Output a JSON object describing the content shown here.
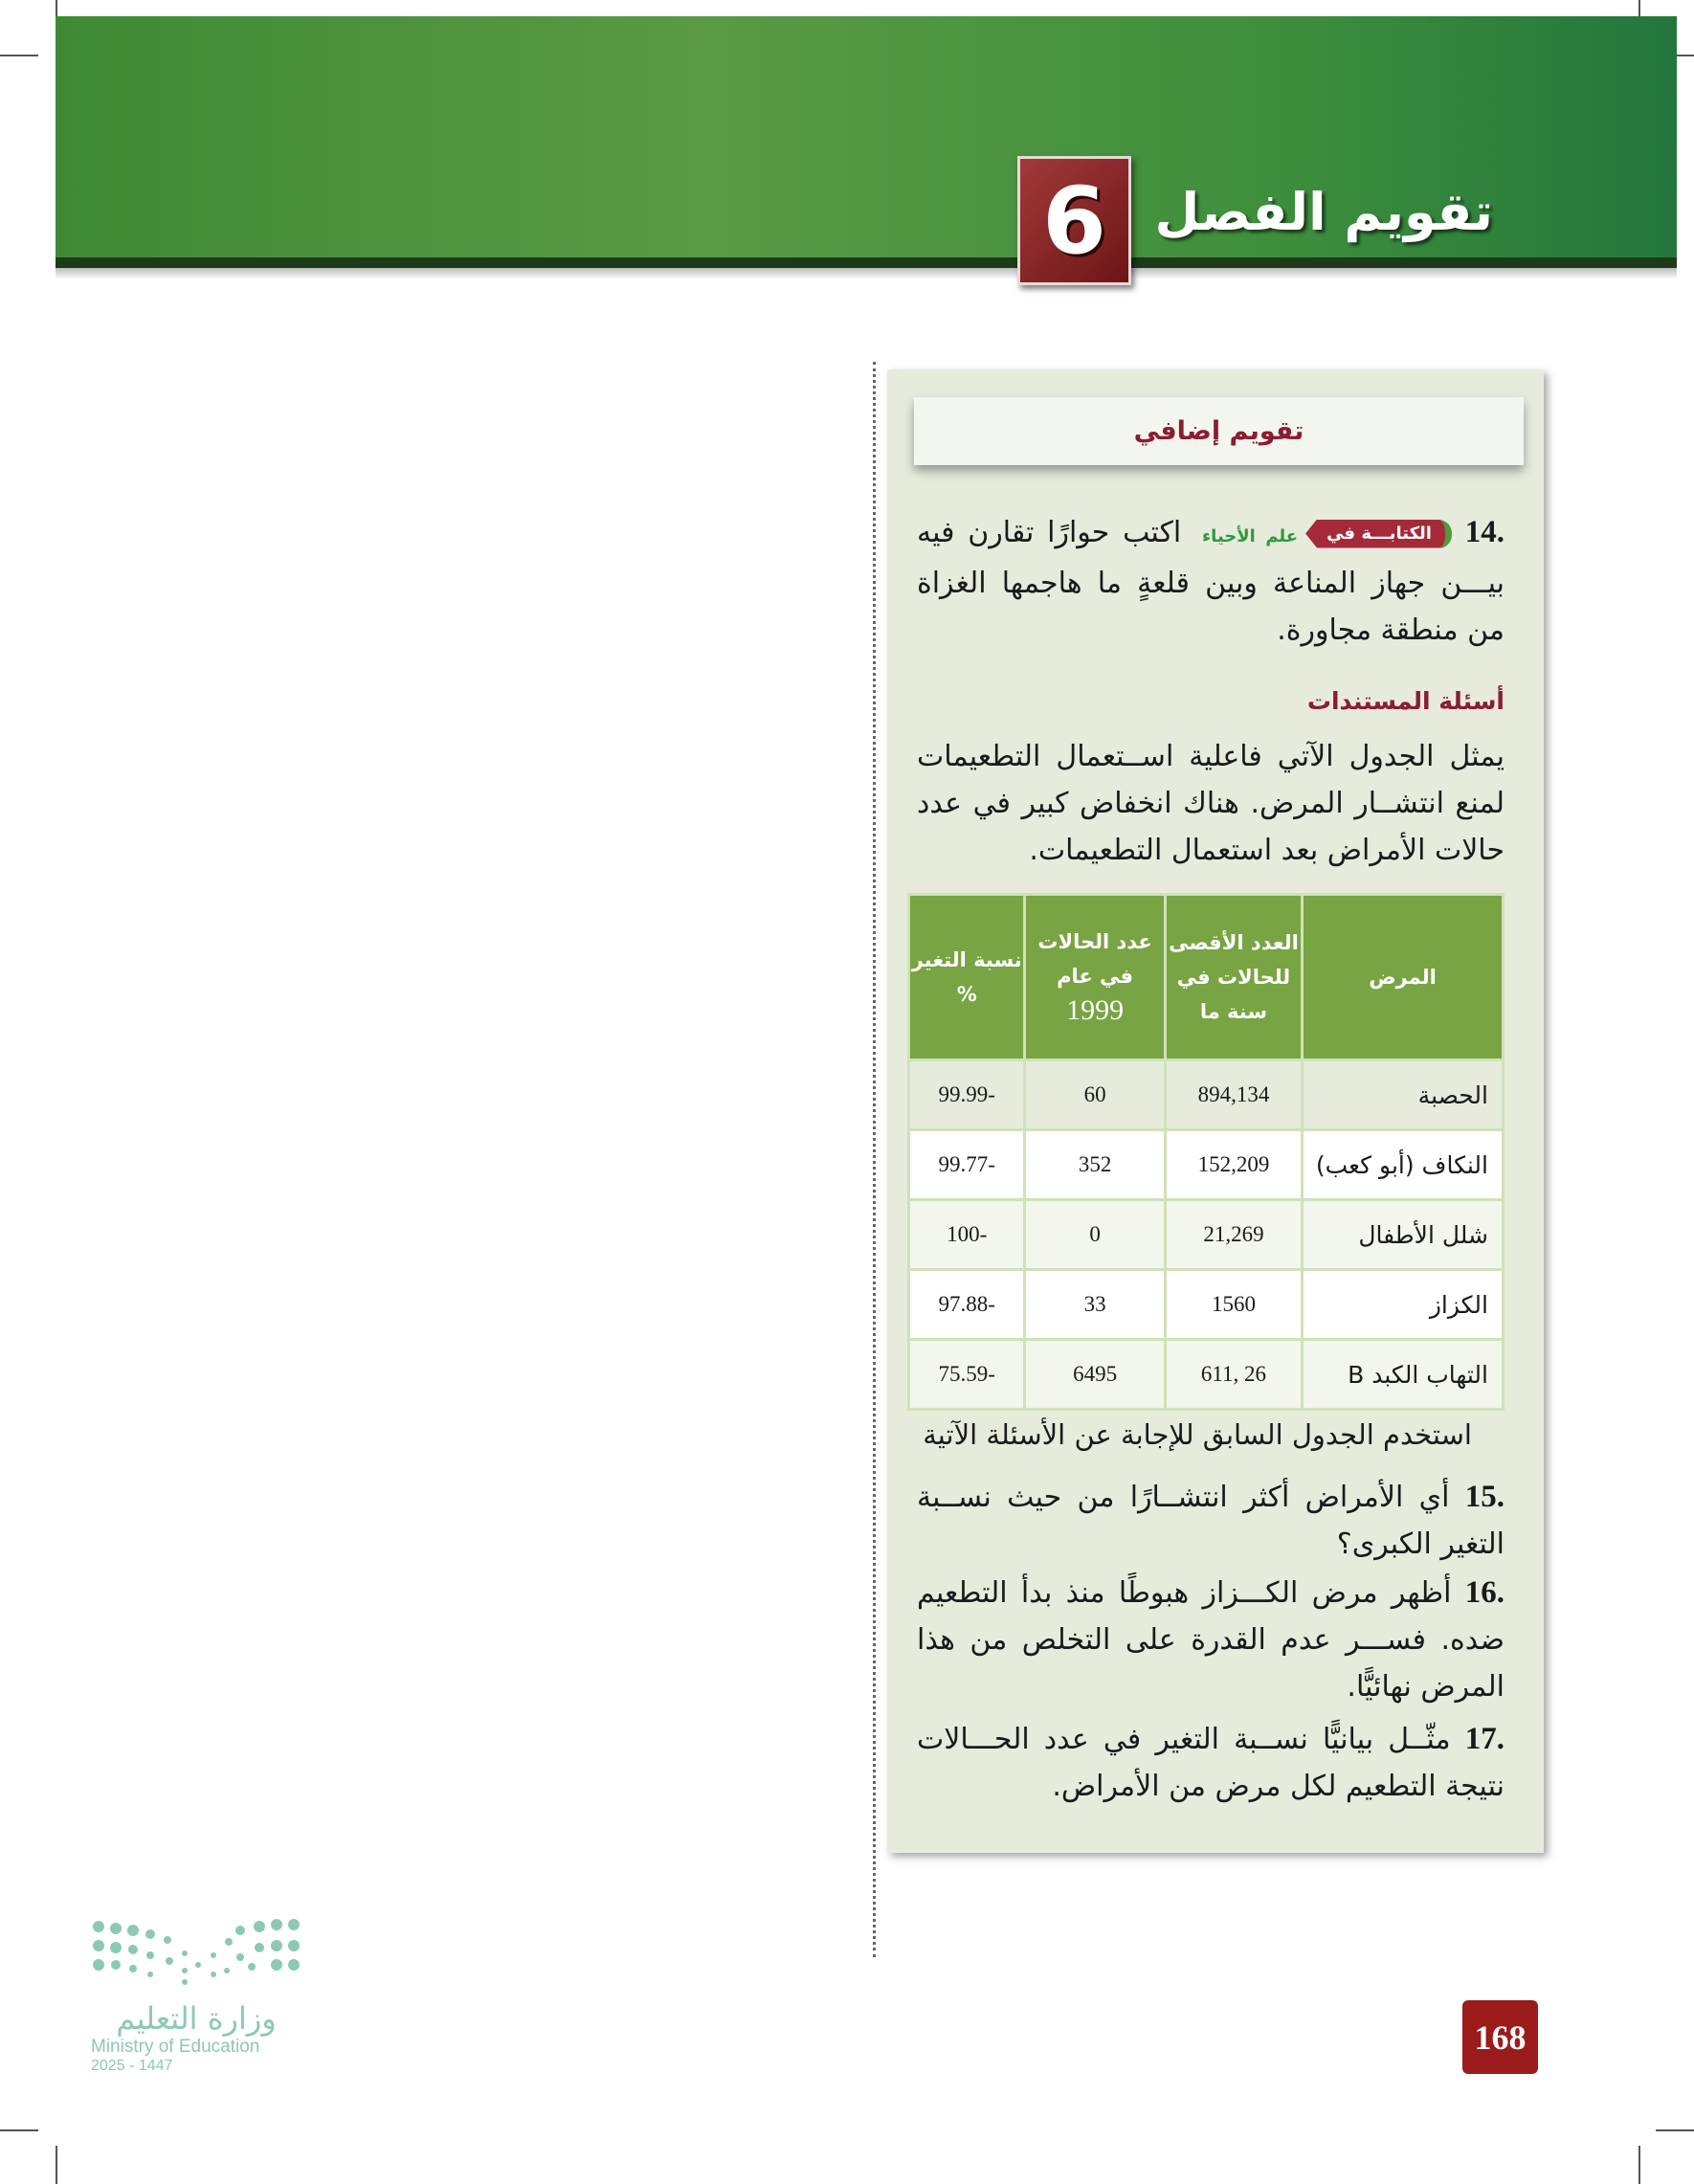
{
  "header": {
    "chapter_number": "6",
    "title": "تقويم الفصل",
    "accent": "#4a9340",
    "badge_color": "#8b1f1f"
  },
  "section_title": "تقويم إضافي",
  "q14": {
    "number": ".14",
    "tag": "الكتابـــة في",
    "subject": "علم الأحياء",
    "line1": "اكتب حوارًا تقارن فيه",
    "rest": "بيـــن جهاز المناعة وبين قلعةٍ ما هاجمها الغزاة من منطقة مجاورة."
  },
  "documents": {
    "heading": "أسئلة المستندات",
    "intro": "يمثل الجدول الآتي فاعلية اســتعمال التطعيمات لمنع انتشــار المرض. هناك انخفاض كبير في عدد حالات الأمراض بعد استعمال التطعيمات."
  },
  "table": {
    "headers": [
      "المرض",
      "العدد الأقصى للحالات في سنة ما",
      "عدد الحالات في عام",
      "نسبة التغير %"
    ],
    "header_year": "1999",
    "rows": [
      [
        "الحصبة",
        "894,134",
        "60",
        "-99.99"
      ],
      [
        "النكاف (أبو كعب)",
        "152,209",
        "352",
        "-99.77"
      ],
      [
        "شلل الأطفال",
        "21,269",
        "0",
        "-100"
      ],
      [
        "الكزاز",
        "1560",
        "33",
        "-97.88"
      ],
      [
        "التهاب الكبد B",
        "26 ,611",
        "6495",
        "-75.59"
      ]
    ]
  },
  "instruction": "استخدم الجدول السابق للإجابة عن الأسئلة الآتية",
  "questions": [
    {
      "number": ".15",
      "text": "أي الأمراض أكثر انتشــارًا من حيث نســبة التغير الكبرى؟"
    },
    {
      "number": ".16",
      "text": "أظهر مرض الكـــزاز هبوطًا منذ بدأ التطعيم ضده. فســـر عدم القدرة على التخلص من هذا المرض نهائيًّا."
    },
    {
      "number": ".17",
      "text": "مثّــل بيانيًّا نســبة التغير في عدد الحـــالات نتيجة التطعيم لكل مرض من الأمراض."
    }
  ],
  "page_number": "168",
  "logo": {
    "arabic": "وزارة التعليم",
    "english": "Ministry of Education",
    "year": "2025 - 1447"
  }
}
